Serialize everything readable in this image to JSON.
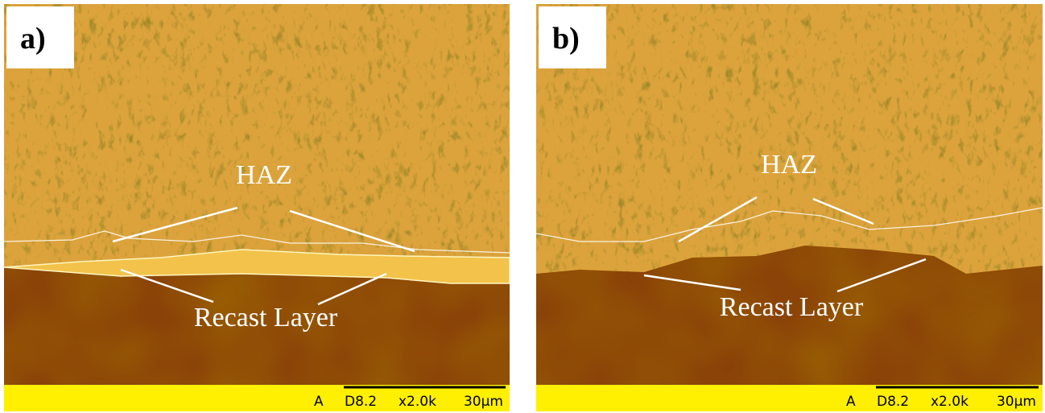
{
  "panels": [
    {
      "label": "a)",
      "haz_label": "HAZ",
      "recast_label": "Recast Layer",
      "scale_bar": {
        "detector": "A",
        "working_distance": "D8.2",
        "magnification": "x2.0k",
        "scale": "30µm"
      }
    },
    {
      "label": "b)",
      "haz_label": "HAZ",
      "recast_label": "Recast Layer",
      "scale_bar": {
        "detector": "A",
        "working_distance": "D8.2",
        "magnification": "x2.0k",
        "scale": "30µm"
      }
    }
  ]
}
